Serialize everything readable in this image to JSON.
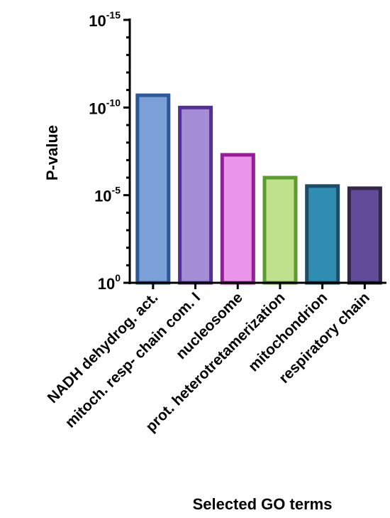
{
  "chart_data": {
    "type": "bar",
    "title": "",
    "xlabel": "Selected GO terms",
    "ylabel": "P-value",
    "y_scale": "log10",
    "y_direction": "inverted (smaller p-values plotted higher)",
    "ylim": [
      1,
      1e-15
    ],
    "yticks": [
      {
        "base": "10",
        "exp": "0",
        "value": 1
      },
      {
        "base": "10",
        "exp": "-5",
        "value": 1e-05
      },
      {
        "base": "10",
        "exp": "-10",
        "value": 1e-10
      },
      {
        "base": "10",
        "exp": "-15",
        "value": 1e-15
      }
    ],
    "grid": false,
    "legend": "none",
    "categories": [
      "NADH dehydrog. act.",
      "mitoch. resp- chain com. I",
      "nucleosome",
      "prot. heterotretamerization",
      "mitochondrion",
      "respiratory chain"
    ],
    "values": [
      2e-11,
      1e-10,
      5e-08,
      1e-06,
      3e-06,
      4e-06
    ],
    "colors": {
      "fill": [
        "#7ba0d8",
        "#a48dd6",
        "#eb95ea",
        "#bfe08c",
        "#2f8db1",
        "#614c99"
      ],
      "stroke": [
        "#2e5998",
        "#552f98",
        "#981b98",
        "#5b9b2f",
        "#1d4c64",
        "#322649"
      ]
    }
  }
}
